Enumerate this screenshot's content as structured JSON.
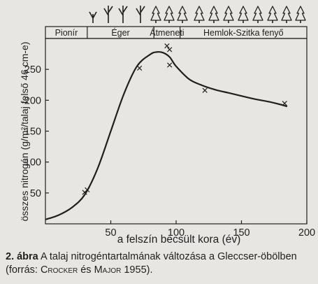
{
  "chart_data": {
    "type": "line",
    "ylabel": "összes nitrogén (g/m²/talaj felső 46 cm-e)",
    "xlabel": "a felszín becsült kora (év)",
    "xlim": [
      0,
      200
    ],
    "ylim": [
      0,
      300
    ],
    "xticks": [
      "50",
      "100",
      "150",
      "200"
    ],
    "yticks": [
      "50",
      "100",
      "150",
      "200",
      "250"
    ],
    "grid": false,
    "stages": [
      {
        "label": "Pionír",
        "from": 0,
        "to": 32
      },
      {
        "label": "Éger",
        "from": 32,
        "to": 83
      },
      {
        "label": "Átmeneti",
        "from": 83,
        "to": 103
      },
      {
        "label": "Hemlok-Szitka fenyő",
        "from": 103,
        "to": 200
      }
    ],
    "observations": {
      "name": "measured",
      "x": [
        30,
        32,
        72,
        93,
        95,
        95,
        122,
        183
      ],
      "y": [
        51,
        55,
        252,
        288,
        282,
        257,
        216,
        195
      ]
    },
    "trend": {
      "name": "trend",
      "x": [
        0,
        10,
        20,
        30,
        40,
        50,
        60,
        70,
        80,
        85,
        90,
        95,
        100,
        110,
        120,
        130,
        140,
        150,
        160,
        170,
        180,
        185
      ],
      "y": [
        7,
        14,
        26,
        47,
        90,
        150,
        210,
        255,
        274,
        278,
        277,
        270,
        255,
        234,
        224,
        217,
        212,
        207,
        202,
        198,
        193,
        190
      ]
    }
  },
  "caption": {
    "number": "2. ábra",
    "text_1": " A talaj nitrogéntartalmának változása a Gleccser-öbölben (forrás: ",
    "author_1": "Crocker",
    "text_2": " és ",
    "author_2": "Major",
    "text_3": " 1955)."
  },
  "colors": {
    "ink": "#1f1f1f",
    "background": "#e8e6e3"
  },
  "icons": [
    "herb-icon",
    "deciduous-tree-icon",
    "conifer-icon"
  ]
}
